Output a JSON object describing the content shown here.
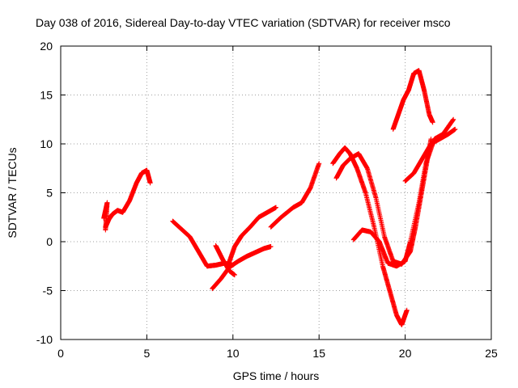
{
  "chart_data": {
    "type": "scatter",
    "title": "Day 038 of 2016, Sidereal Day-to-day VTEC variation (SDTVAR) for receiver msco",
    "xlabel": "GPS time / hours",
    "ylabel": "SDTVAR / TECUs",
    "xlim": [
      0,
      25
    ],
    "ylim": [
      -10,
      20
    ],
    "x_ticks": [
      "0",
      "5",
      "10",
      "15",
      "20",
      "25"
    ],
    "y_ticks": [
      "-10",
      "-5",
      "0",
      "5",
      "10",
      "15",
      "20"
    ],
    "grid": true,
    "marker": "+",
    "color": "#ff0000",
    "series": [
      {
        "x": [
          2.6,
          2.8,
          3.0,
          3.3,
          3.6,
          4.0,
          4.4,
          4.7,
          5.0,
          5.2
        ],
        "y": [
          1.5,
          2.3,
          2.8,
          3.2,
          3.0,
          4.2,
          6.0,
          7.0,
          7.3,
          6.0
        ]
      },
      {
        "x": [
          2.5,
          2.7,
          2.6
        ],
        "y": [
          2.4,
          4.0,
          1.2
        ]
      },
      {
        "x": [
          6.5,
          7.0,
          7.5,
          8.0,
          8.5,
          9.0,
          9.5,
          10.0
        ],
        "y": [
          2.1,
          1.3,
          0.5,
          -1.0,
          -2.5,
          -2.4,
          -2.2,
          -2.4
        ]
      },
      {
        "x": [
          8.8,
          9.3,
          9.8,
          10.3,
          10.8,
          11.3,
          11.8,
          12.2
        ],
        "y": [
          -4.8,
          -3.8,
          -2.6,
          -2.0,
          -1.5,
          -1.1,
          -0.7,
          -0.5
        ]
      },
      {
        "x": [
          9.0,
          9.4,
          9.8,
          10.1
        ],
        "y": [
          -0.4,
          -1.8,
          -3.0,
          -3.4
        ]
      },
      {
        "x": [
          9.7,
          10.1,
          10.5,
          11.0,
          11.5,
          12.0,
          12.5
        ],
        "y": [
          -2.5,
          -0.5,
          0.6,
          1.5,
          2.5,
          3.0,
          3.5
        ]
      },
      {
        "x": [
          12.2,
          12.8,
          13.5,
          14.0,
          14.5,
          15.0
        ],
        "y": [
          1.5,
          2.5,
          3.5,
          4.0,
          5.5,
          8.0
        ]
      },
      {
        "x": [
          15.8,
          16.2,
          16.5,
          16.8,
          17.2,
          17.7,
          18.2,
          18.7,
          19.1,
          19.5,
          19.8,
          20.1
        ],
        "y": [
          8.0,
          9.0,
          9.6,
          9.0,
          7.5,
          5.0,
          1.5,
          -2.5,
          -5.0,
          -7.5,
          -8.5,
          -7.0
        ]
      },
      {
        "x": [
          16.0,
          16.4,
          16.8,
          17.3,
          17.8,
          18.3,
          18.8,
          19.3,
          19.8,
          20.3,
          20.6,
          20.9,
          21.2,
          21.5
        ],
        "y": [
          6.5,
          7.8,
          8.5,
          9.0,
          7.5,
          4.5,
          0.5,
          -2.0,
          -2.3,
          -1.0,
          1.5,
          4.5,
          7.5,
          10.5
        ]
      },
      {
        "x": [
          17.0,
          17.5,
          18.0,
          18.5,
          19.0,
          19.5,
          20.0,
          20.3,
          20.8,
          21.2,
          21.7,
          22.2,
          22.8
        ],
        "y": [
          0.2,
          1.2,
          1.0,
          0.0,
          -2.2,
          -2.5,
          -2.0,
          0.0,
          4.0,
          8.0,
          10.5,
          11.0,
          12.5
        ]
      },
      {
        "x": [
          20.0,
          20.5,
          21.0,
          21.5,
          22.0,
          22.5,
          22.9
        ],
        "y": [
          6.2,
          7.0,
          8.5,
          10.0,
          10.5,
          11.0,
          11.5
        ]
      },
      {
        "x": [
          19.3,
          19.6,
          19.9,
          20.2,
          20.5,
          20.8,
          21.1,
          21.4,
          21.6
        ],
        "y": [
          11.5,
          13.0,
          14.5,
          15.5,
          17.2,
          17.5,
          15.5,
          13.0,
          12.2
        ]
      }
    ]
  }
}
